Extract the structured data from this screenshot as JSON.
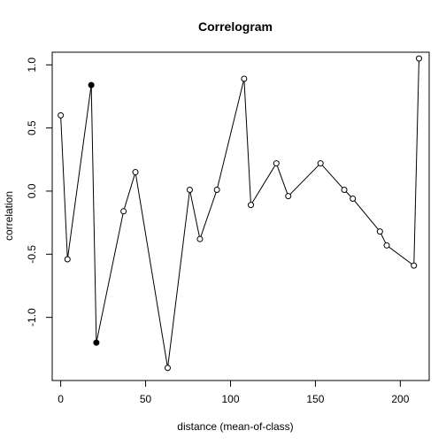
{
  "chart_data": {
    "type": "line",
    "title": "Correlogram",
    "xlabel": "distance (mean-of-class)",
    "ylabel": "correlation",
    "xlim": [
      -5,
      217
    ],
    "ylim": [
      -1.5,
      1.1
    ],
    "xticks": [
      0,
      50,
      100,
      150,
      200
    ],
    "xtick_labels": [
      "0",
      "50",
      "100",
      "150",
      "200"
    ],
    "yticks": [
      -1.0,
      -0.5,
      0.0,
      0.5,
      1.0
    ],
    "ytick_labels": [
      "-1.0",
      "-0.5",
      "0.0",
      "0.5",
      "1.0"
    ],
    "grid": false,
    "series": [
      {
        "points": [
          {
            "x": 0,
            "y": 0.6,
            "significant": false
          },
          {
            "x": 4,
            "y": -0.54,
            "significant": false
          },
          {
            "x": 18,
            "y": 0.84,
            "significant": true
          },
          {
            "x": 21,
            "y": -1.2,
            "significant": true
          },
          {
            "x": 37,
            "y": -0.16,
            "significant": false
          },
          {
            "x": 44,
            "y": 0.15,
            "significant": false
          },
          {
            "x": 63,
            "y": -1.4,
            "significant": false
          },
          {
            "x": 76,
            "y": 0.01,
            "significant": false
          },
          {
            "x": 82,
            "y": -0.38,
            "significant": false
          },
          {
            "x": 92,
            "y": 0.01,
            "significant": false
          },
          {
            "x": 108,
            "y": 0.89,
            "significant": false
          },
          {
            "x": 112,
            "y": -0.11,
            "significant": false
          },
          {
            "x": 127,
            "y": 0.22,
            "significant": false
          },
          {
            "x": 134,
            "y": -0.04,
            "significant": false
          },
          {
            "x": 153,
            "y": 0.22,
            "significant": false
          },
          {
            "x": 167,
            "y": 0.01,
            "significant": false
          },
          {
            "x": 172,
            "y": -0.06,
            "significant": false
          },
          {
            "x": 188,
            "y": -0.32,
            "significant": false
          },
          {
            "x": 192,
            "y": -0.43,
            "significant": false
          },
          {
            "x": 208,
            "y": -0.59,
            "significant": false
          },
          {
            "x": 211,
            "y": 1.05,
            "significant": false
          }
        ]
      }
    ]
  }
}
